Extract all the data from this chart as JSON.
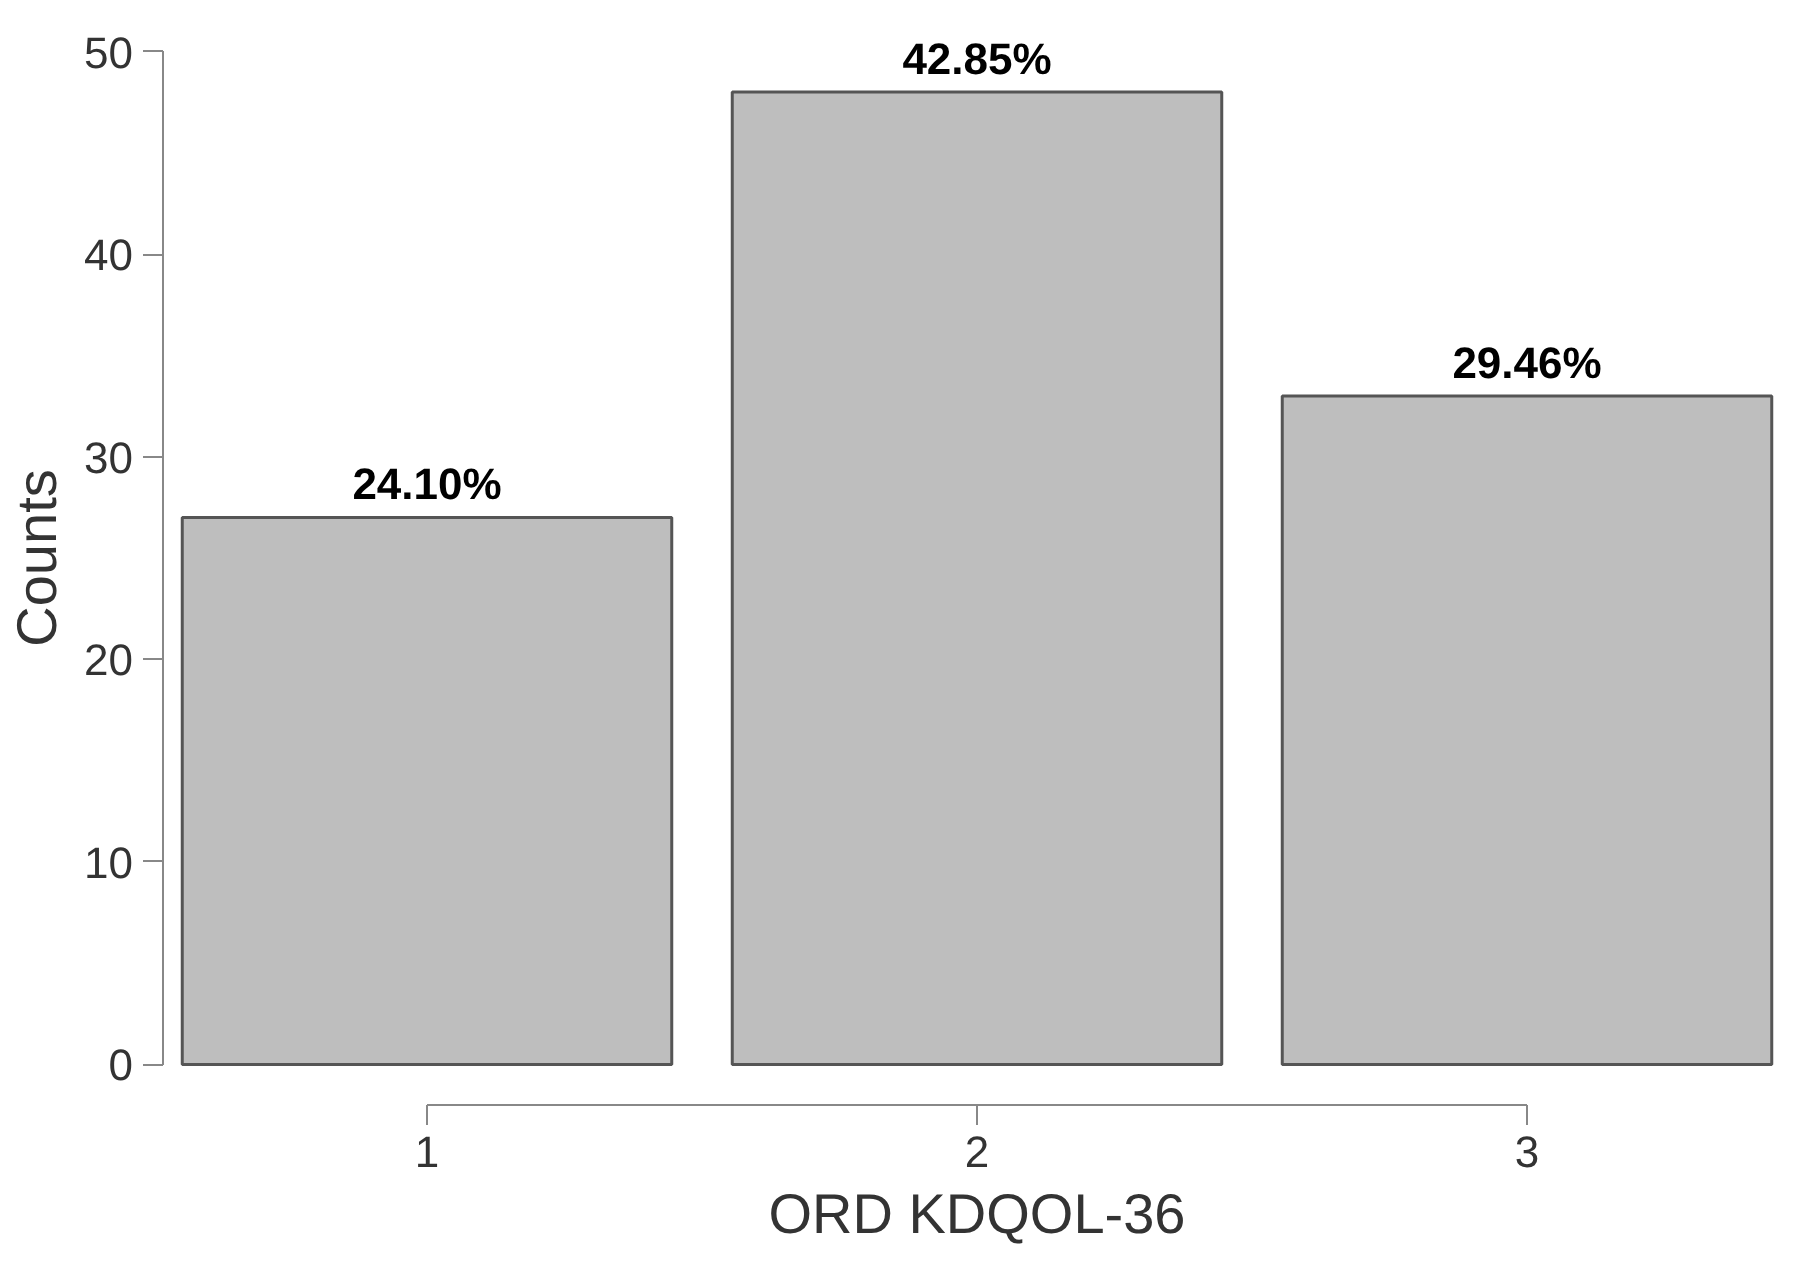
{
  "chart_data": {
    "type": "bar",
    "xlabel": "ORD KDQOL-36",
    "ylabel": "Counts",
    "categories": [
      "1",
      "2",
      "3"
    ],
    "values": [
      27,
      48,
      33
    ],
    "annotations": [
      {
        "text": "24.10%",
        "x": "1",
        "y": 27
      },
      {
        "text": "42.85%",
        "x": "2",
        "y": 48
      },
      {
        "text": "29.46%",
        "x": "3",
        "y": 33
      }
    ],
    "color": "#bebebe",
    "ylim": [
      0,
      50
    ],
    "yticks": [
      0,
      10,
      20,
      30,
      40,
      50
    ]
  }
}
